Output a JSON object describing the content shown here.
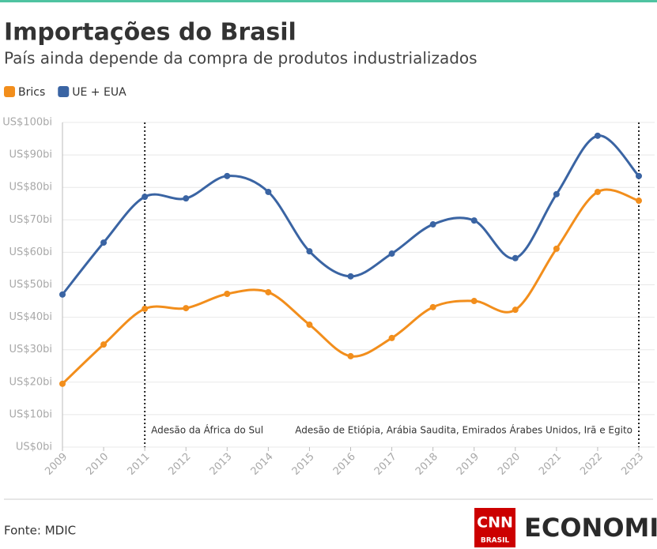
{
  "chart_data": {
    "type": "line",
    "title": "Importações do Brasil",
    "subtitle": "País ainda depende da compra de produtos industrializados",
    "categories": [
      "2009",
      "2010",
      "2011",
      "2012",
      "2013",
      "2014",
      "2015",
      "2016",
      "2017",
      "2018",
      "2019",
      "2020",
      "2021",
      "2022",
      "2023"
    ],
    "series": [
      {
        "name": "Brics",
        "color": "#f28e1c",
        "values": [
          19.5,
          31.6,
          42.6,
          42.8,
          47.2,
          47.7,
          37.7,
          28.0,
          33.6,
          43.1,
          45.0,
          42.3,
          61.1,
          78.6,
          75.9
        ]
      },
      {
        "name": "UE + EUA",
        "color": "#3a64a3",
        "values": [
          47.0,
          63.0,
          77.1,
          76.6,
          83.5,
          78.6,
          60.3,
          52.6,
          59.6,
          68.6,
          69.8,
          58.2,
          77.9,
          95.9,
          83.5
        ]
      }
    ],
    "ylim": [
      0,
      100
    ],
    "yticks": [
      {
        "value": 0,
        "label": "US$0bi"
      },
      {
        "value": 10,
        "label": "US$10bi"
      },
      {
        "value": 20,
        "label": "US$20bi"
      },
      {
        "value": 30,
        "label": "US$30bi"
      },
      {
        "value": 40,
        "label": "US$40bi"
      },
      {
        "value": 50,
        "label": "US$50bi"
      },
      {
        "value": 60,
        "label": "US$60bi"
      },
      {
        "value": 70,
        "label": "US$70bi"
      },
      {
        "value": 80,
        "label": "US$80bi"
      },
      {
        "value": 90,
        "label": "US$90bi"
      },
      {
        "value": 100,
        "label": "US$100bi"
      }
    ],
    "grid": true,
    "legend": "top-left",
    "annotations": [
      {
        "x": "2011",
        "text": "Adesão da África do Sul"
      },
      {
        "x": "2023",
        "text": "Adesão de Etiópia, Arábia Saudita, Emirados Árabes Unidos, Irã e Egito"
      }
    ]
  },
  "footer": {
    "source": "Fonte: MDIC",
    "logo": {
      "brand": "CNN",
      "region": "BRASIL",
      "section": "ECONOMIA"
    }
  }
}
